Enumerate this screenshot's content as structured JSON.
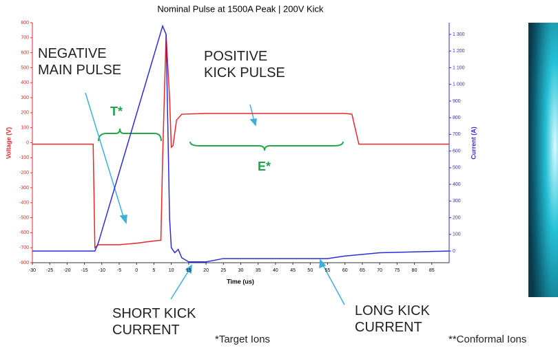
{
  "chart_data": {
    "type": "line",
    "title": "Nominal Pulse at 1500A Peak | 200V Kick",
    "xlabel": "Time (us)",
    "ylabel": "Voltage (V)",
    "y2label": "Current (A)",
    "xlim": [
      -30,
      90
    ],
    "xticks": [
      -30,
      -25,
      -20,
      -15,
      -10,
      -5,
      0,
      5,
      10,
      15,
      20,
      25,
      30,
      35,
      40,
      45,
      50,
      55,
      60,
      65,
      70,
      75,
      80,
      85
    ],
    "ylim": [
      -800,
      800
    ],
    "yticks": [
      -800,
      -700,
      -600,
      -500,
      -400,
      -300,
      -200,
      -100,
      0,
      100,
      200,
      300,
      400,
      500,
      600,
      700,
      800
    ],
    "y2lim": [
      -70,
      1370
    ],
    "y2ticks": [
      0,
      100,
      200,
      300,
      400,
      500,
      600,
      700,
      800,
      900,
      {
        "value": 1000,
        "label": "1 000"
      },
      {
        "value": 1100,
        "label": "1 100"
      },
      {
        "value": 1200,
        "label": "1 200"
      },
      {
        "value": 1300,
        "label": "1 300"
      }
    ],
    "series": [
      {
        "color": "#e8262a",
        "axis": "y",
        "x": [
          -30,
          -12.5,
          -12,
          -11,
          -5,
          0,
          5,
          7,
          7.5,
          8.5,
          9.5,
          10,
          10.5,
          11.5,
          13,
          20,
          30,
          40,
          50,
          60,
          62,
          64,
          90
        ],
        "values": [
          -10,
          -10,
          -700,
          -680,
          -680,
          -670,
          -655,
          -650,
          -100,
          720,
          300,
          -30,
          -20,
          150,
          190,
          195,
          195,
          195,
          195,
          195,
          190,
          -10,
          -10
        ]
      },
      {
        "color": "#2b2bd9",
        "axis": "y2",
        "x": [
          -30,
          -12,
          -11,
          7.5,
          8.5,
          9.5,
          10,
          11,
          12,
          13,
          15,
          20,
          25,
          40,
          55,
          60,
          70,
          90
        ],
        "values": [
          0,
          0,
          50,
          1350,
          1300,
          200,
          20,
          -10,
          10,
          -40,
          -65,
          -65,
          -45,
          -45,
          -45,
          -30,
          -10,
          0
        ]
      }
    ],
    "annotations": [
      "NEGATIVE MAIN PULSE",
      "POSITIVE KICK PULSE",
      "T*",
      "E*",
      "SHORT KICK CURRENT",
      "LONG KICK CURRENT",
      "*Target Ions",
      "**Conformal Ions"
    ]
  }
}
